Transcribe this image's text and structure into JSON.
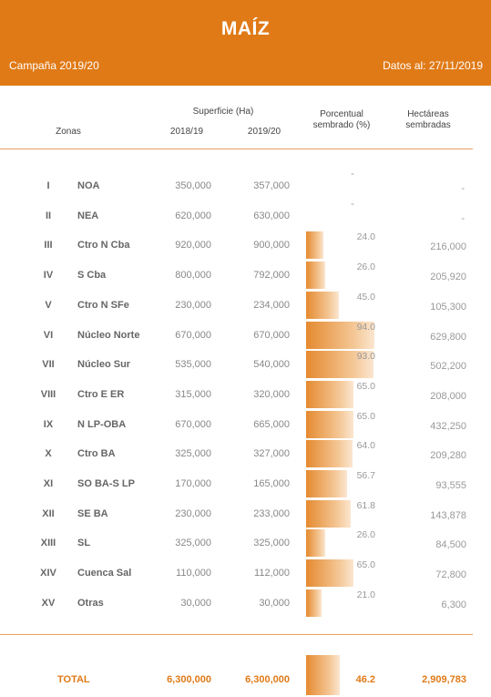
{
  "header": {
    "title": "MAÍZ",
    "campaign": "Campaña 2019/20",
    "date": "Datos al: 27/11/2019"
  },
  "columns": {
    "zonas": "Zonas",
    "superficie": "Superficie (Ha)",
    "y1": "2018/19",
    "y2": "2019/20",
    "porcentual_1": "Porcentual",
    "porcentual_2": "sembrado (%)",
    "hectareas_1": "Hectáreas",
    "hectareas_2": "sembradas"
  },
  "chart_data": {
    "type": "table",
    "title": "MAÍZ",
    "rows": [
      {
        "num": "I",
        "zone": "NOA",
        "s2018": "350,000",
        "s2019": "357,000",
        "pct": null,
        "pct_label": "-",
        "sembradas": "-"
      },
      {
        "num": "II",
        "zone": "NEA",
        "s2018": "620,000",
        "s2019": "630,000",
        "pct": null,
        "pct_label": "-",
        "sembradas": "-"
      },
      {
        "num": "III",
        "zone": "Ctro N Cba",
        "s2018": "920,000",
        "s2019": "900,000",
        "pct": 24.0,
        "pct_label": "24.0",
        "sembradas": "216,000"
      },
      {
        "num": "IV",
        "zone": "S Cba",
        "s2018": "800,000",
        "s2019": "792,000",
        "pct": 26.0,
        "pct_label": "26.0",
        "sembradas": "205,920"
      },
      {
        "num": "V",
        "zone": "Ctro N SFe",
        "s2018": "230,000",
        "s2019": "234,000",
        "pct": 45.0,
        "pct_label": "45.0",
        "sembradas": "105,300"
      },
      {
        "num": "VI",
        "zone": "Núcleo Norte",
        "s2018": "670,000",
        "s2019": "670,000",
        "pct": 94.0,
        "pct_label": "94.0",
        "sembradas": "629,800"
      },
      {
        "num": "VII",
        "zone": "Núcleo Sur",
        "s2018": "535,000",
        "s2019": "540,000",
        "pct": 93.0,
        "pct_label": "93.0",
        "sembradas": "502,200"
      },
      {
        "num": "VIII",
        "zone": "Ctro E ER",
        "s2018": "315,000",
        "s2019": "320,000",
        "pct": 65.0,
        "pct_label": "65.0",
        "sembradas": "208,000"
      },
      {
        "num": "IX",
        "zone": "N LP-OBA",
        "s2018": "670,000",
        "s2019": "665,000",
        "pct": 65.0,
        "pct_label": "65.0",
        "sembradas": "432,250"
      },
      {
        "num": "X",
        "zone": "Ctro BA",
        "s2018": "325,000",
        "s2019": "327,000",
        "pct": 64.0,
        "pct_label": "64.0",
        "sembradas": "209,280"
      },
      {
        "num": "XI",
        "zone": "SO BA-S LP",
        "s2018": "170,000",
        "s2019": "165,000",
        "pct": 56.7,
        "pct_label": "56.7",
        "sembradas": "93,555"
      },
      {
        "num": "XII",
        "zone": "SE BA",
        "s2018": "230,000",
        "s2019": "233,000",
        "pct": 61.8,
        "pct_label": "61.8",
        "sembradas": "143,878"
      },
      {
        "num": "XIII",
        "zone": "SL",
        "s2018": "325,000",
        "s2019": "325,000",
        "pct": 26.0,
        "pct_label": "26.0",
        "sembradas": "84,500"
      },
      {
        "num": "XIV",
        "zone": "Cuenca Sal",
        "s2018": "110,000",
        "s2019": "112,000",
        "pct": 65.0,
        "pct_label": "65.0",
        "sembradas": "72,800"
      },
      {
        "num": "XV",
        "zone": "Otras",
        "s2018": "30,000",
        "s2019": "30,000",
        "pct": 21.0,
        "pct_label": "21.0",
        "sembradas": "6,300"
      }
    ],
    "total": {
      "label": "TOTAL",
      "s2018": "6,300,000",
      "s2019": "6,300,000",
      "pct": 46.2,
      "pct_label": "46.2",
      "sembradas": "2,909,783"
    }
  },
  "colors": {
    "accent": "#e07a17",
    "bar_start": "#e58a30",
    "bar_end": "#fbe6d0"
  }
}
